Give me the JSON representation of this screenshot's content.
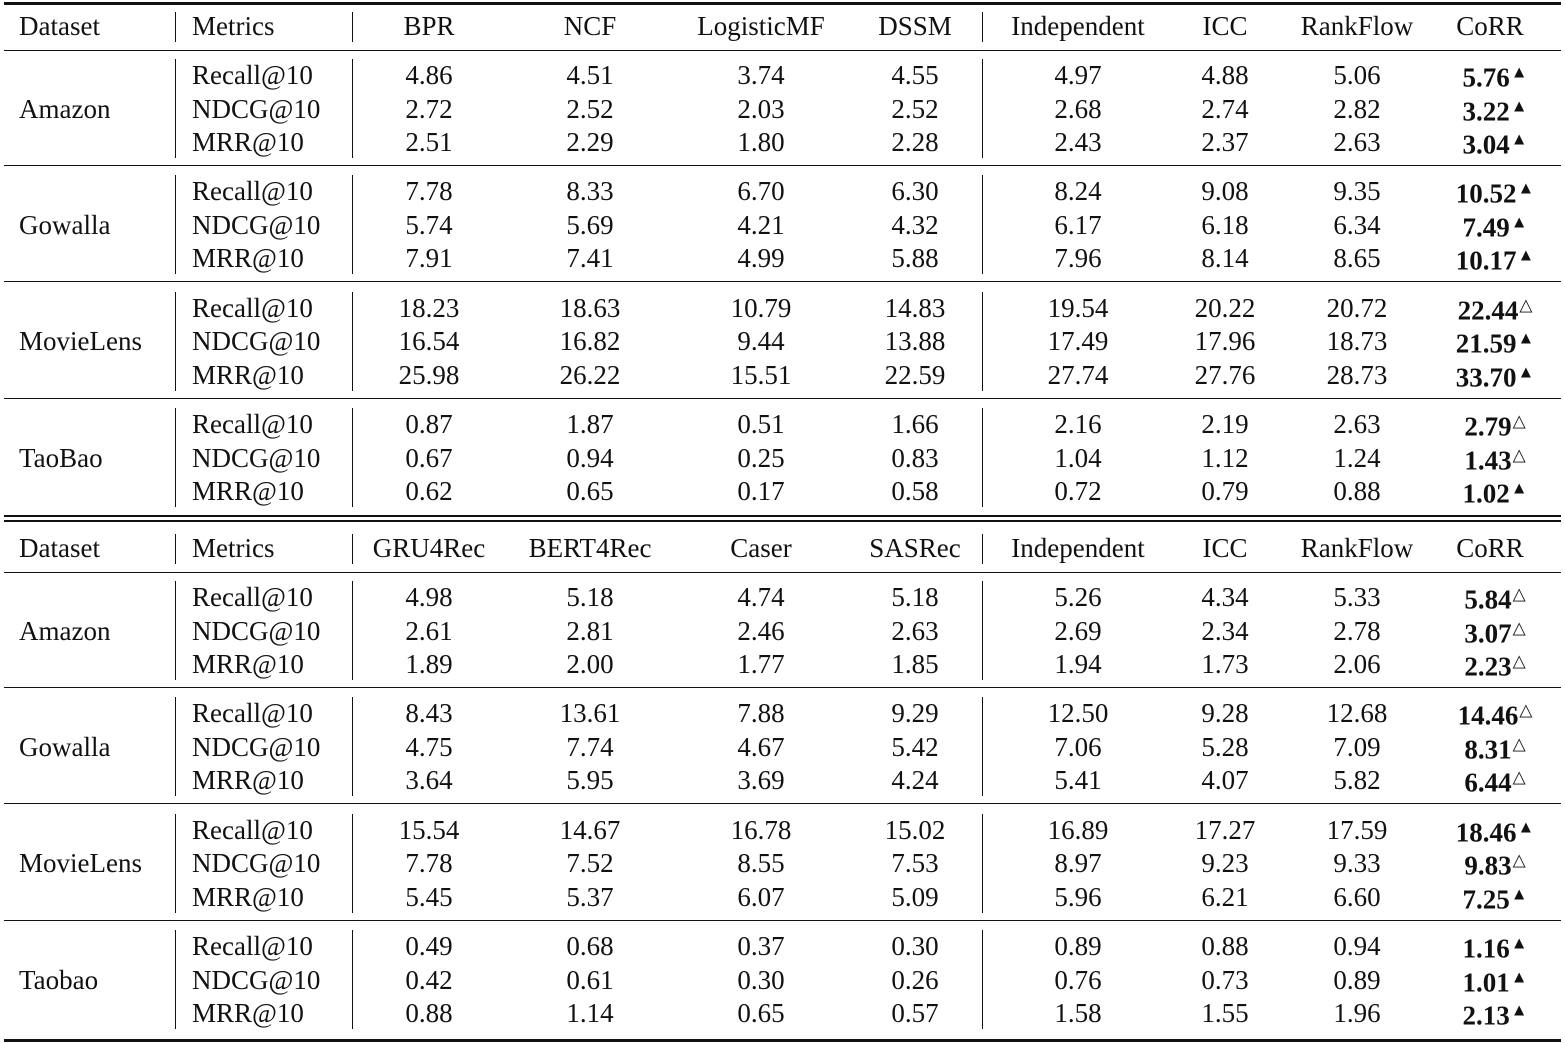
{
  "tables": [
    {
      "header": [
        "Dataset",
        "Metrics",
        "BPR",
        "NCF",
        "LogisticMF",
        "DSSM",
        "Independent",
        "ICC",
        "RankFlow",
        "CoRR"
      ],
      "groups": [
        {
          "dataset": "Amazon",
          "rows": [
            {
              "metric": "Recall@10",
              "values": [
                "4.86",
                "4.51",
                "3.74",
                "4.55",
                "4.97",
                "4.88",
                "5.06",
                "5.76"
              ],
              "marker": "▲"
            },
            {
              "metric": "NDCG@10",
              "values": [
                "2.72",
                "2.52",
                "2.03",
                "2.52",
                "2.68",
                "2.74",
                "2.82",
                "3.22"
              ],
              "marker": "▲"
            },
            {
              "metric": "MRR@10",
              "values": [
                "2.51",
                "2.29",
                "1.80",
                "2.28",
                "2.43",
                "2.37",
                "2.63",
                "3.04"
              ],
              "marker": "▲"
            }
          ]
        },
        {
          "dataset": "Gowalla",
          "rows": [
            {
              "metric": "Recall@10",
              "values": [
                "7.78",
                "8.33",
                "6.70",
                "6.30",
                "8.24",
                "9.08",
                "9.35",
                "10.52"
              ],
              "marker": "▲"
            },
            {
              "metric": "NDCG@10",
              "values": [
                "5.74",
                "5.69",
                "4.21",
                "4.32",
                "6.17",
                "6.18",
                "6.34",
                "7.49"
              ],
              "marker": "▲"
            },
            {
              "metric": "MRR@10",
              "values": [
                "7.91",
                "7.41",
                "4.99",
                "5.88",
                "7.96",
                "8.14",
                "8.65",
                "10.17"
              ],
              "marker": "▲"
            }
          ]
        },
        {
          "dataset": "MovieLens",
          "rows": [
            {
              "metric": "Recall@10",
              "values": [
                "18.23",
                "18.63",
                "10.79",
                "14.83",
                "19.54",
                "20.22",
                "20.72",
                "22.44"
              ],
              "marker": "△"
            },
            {
              "metric": "NDCG@10",
              "values": [
                "16.54",
                "16.82",
                "9.44",
                "13.88",
                "17.49",
                "17.96",
                "18.73",
                "21.59"
              ],
              "marker": "▲"
            },
            {
              "metric": "MRR@10",
              "values": [
                "25.98",
                "26.22",
                "15.51",
                "22.59",
                "27.74",
                "27.76",
                "28.73",
                "33.70"
              ],
              "marker": "▲"
            }
          ]
        },
        {
          "dataset": "TaoBao",
          "rows": [
            {
              "metric": "Recall@10",
              "values": [
                "0.87",
                "1.87",
                "0.51",
                "1.66",
                "2.16",
                "2.19",
                "2.63",
                "2.79"
              ],
              "marker": "△"
            },
            {
              "metric": "NDCG@10",
              "values": [
                "0.67",
                "0.94",
                "0.25",
                "0.83",
                "1.04",
                "1.12",
                "1.24",
                "1.43"
              ],
              "marker": "△"
            },
            {
              "metric": "MRR@10",
              "values": [
                "0.62",
                "0.65",
                "0.17",
                "0.58",
                "0.72",
                "0.79",
                "0.88",
                "1.02"
              ],
              "marker": "▲"
            }
          ]
        }
      ]
    },
    {
      "header": [
        "Dataset",
        "Metrics",
        "GRU4Rec",
        "BERT4Rec",
        "Caser",
        "SASRec",
        "Independent",
        "ICC",
        "RankFlow",
        "CoRR"
      ],
      "groups": [
        {
          "dataset": "Amazon",
          "rows": [
            {
              "metric": "Recall@10",
              "values": [
                "4.98",
                "5.18",
                "4.74",
                "5.18",
                "5.26",
                "4.34",
                "5.33",
                "5.84"
              ],
              "marker": "△"
            },
            {
              "metric": "NDCG@10",
              "values": [
                "2.61",
                "2.81",
                "2.46",
                "2.63",
                "2.69",
                "2.34",
                "2.78",
                "3.07"
              ],
              "marker": "△"
            },
            {
              "metric": "MRR@10",
              "values": [
                "1.89",
                "2.00",
                "1.77",
                "1.85",
                "1.94",
                "1.73",
                "2.06",
                "2.23"
              ],
              "marker": "△"
            }
          ]
        },
        {
          "dataset": "Gowalla",
          "rows": [
            {
              "metric": "Recall@10",
              "values": [
                "8.43",
                "13.61",
                "7.88",
                "9.29",
                "12.50",
                "9.28",
                "12.68",
                "14.46"
              ],
              "marker": "△"
            },
            {
              "metric": "NDCG@10",
              "values": [
                "4.75",
                "7.74",
                "4.67",
                "5.42",
                "7.06",
                "5.28",
                "7.09",
                "8.31"
              ],
              "marker": "△"
            },
            {
              "metric": "MRR@10",
              "values": [
                "3.64",
                "5.95",
                "3.69",
                "4.24",
                "5.41",
                "4.07",
                "5.82",
                "6.44"
              ],
              "marker": "△"
            }
          ]
        },
        {
          "dataset": "MovieLens",
          "rows": [
            {
              "metric": "Recall@10",
              "values": [
                "15.54",
                "14.67",
                "16.78",
                "15.02",
                "16.89",
                "17.27",
                "17.59",
                "18.46"
              ],
              "marker": "▲"
            },
            {
              "metric": "NDCG@10",
              "values": [
                "7.78",
                "7.52",
                "8.55",
                "7.53",
                "8.97",
                "9.23",
                "9.33",
                "9.83"
              ],
              "marker": "△"
            },
            {
              "metric": "MRR@10",
              "values": [
                "5.45",
                "5.37",
                "6.07",
                "5.09",
                "5.96",
                "6.21",
                "6.60",
                "7.25"
              ],
              "marker": "▲"
            }
          ]
        },
        {
          "dataset": "Taobao",
          "rows": [
            {
              "metric": "Recall@10",
              "values": [
                "0.49",
                "0.68",
                "0.37",
                "0.30",
                "0.89",
                "0.88",
                "0.94",
                "1.16"
              ],
              "marker": "▲"
            },
            {
              "metric": "NDCG@10",
              "values": [
                "0.42",
                "0.61",
                "0.30",
                "0.26",
                "0.76",
                "0.73",
                "0.89",
                "1.01"
              ],
              "marker": "▲"
            },
            {
              "metric": "MRR@10",
              "values": [
                "0.88",
                "1.14",
                "0.65",
                "0.57",
                "1.58",
                "1.55",
                "1.96",
                "2.13"
              ],
              "marker": "▲"
            }
          ]
        }
      ]
    }
  ]
}
